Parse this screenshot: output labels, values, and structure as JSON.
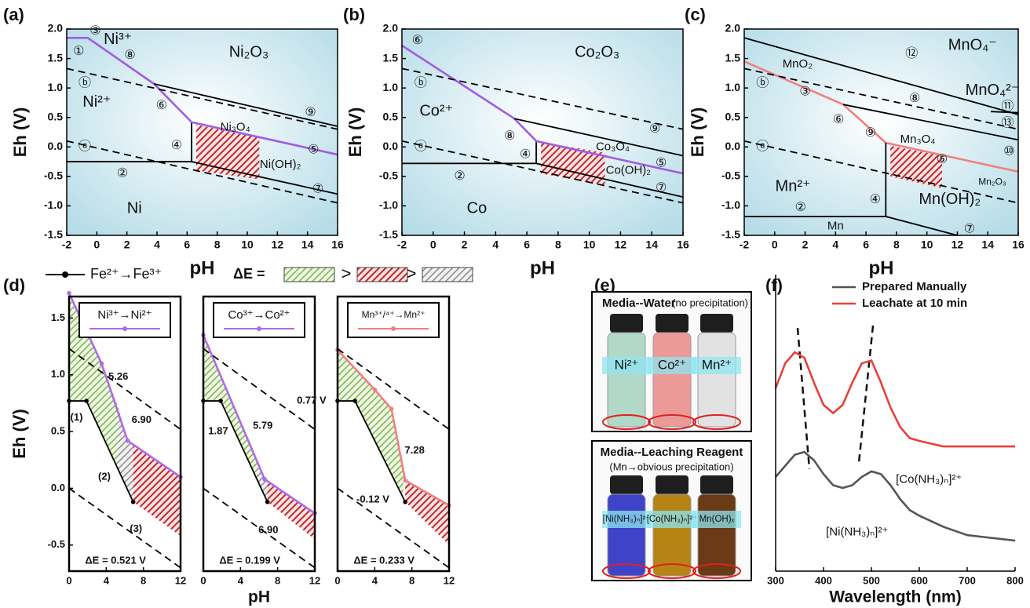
{
  "chart_data": [
    {
      "type": "line",
      "panel": "(a)",
      "xlabel": "pH",
      "ylabel": "Eh (V)",
      "xlim": [
        -2,
        16
      ],
      "xticks": [
        -2,
        0,
        2,
        4,
        6,
        8,
        10,
        12,
        14,
        16
      ],
      "ylim": [
        -1.5,
        2
      ],
      "yticks": [
        -1.5,
        {
          "value": -1,
          "label": "-1.0"
        },
        -0.5,
        {
          "value": 0,
          "label": "0.0"
        },
        0.5,
        {
          "value": 1,
          "label": "1.0"
        },
        1.5,
        {
          "value": 2,
          "label": "2.0"
        }
      ],
      "series": [
        {
          "color": "#000000",
          "x": [
            -2,
            6.3,
            16
          ],
          "values": [
            -0.25,
            -0.25,
            -0.8
          ]
        },
        {
          "color": "#000000",
          "x": [
            6.3,
            6.3
          ],
          "values": [
            -0.25,
            0.42
          ]
        },
        {
          "color": "#a05ce0",
          "x": [
            -2,
            -0.6,
            3.8,
            6.3,
            16
          ],
          "values": [
            1.85,
            1.85,
            1.07,
            0.42,
            -0.13
          ]
        },
        {
          "color": "#000000",
          "x": [
            3.8,
            16
          ],
          "values": [
            1.07,
            0.35
          ]
        },
        {
          "color": "#000000",
          "style": "dashed",
          "x": [
            -2,
            16
          ],
          "values": [
            1.33,
            0.3
          ]
        },
        {
          "color": "#000000",
          "style": "dashed",
          "x": [
            -2,
            16
          ],
          "values": [
            0.1,
            -0.95
          ]
        }
      ],
      "annotations": [
        "Ni³⁺",
        "Ni₂O₃",
        "Ni²⁺",
        "Ni₃O₄",
        "Ni(OH)₂",
        "Ni",
        "①",
        "③",
        "⑧",
        "ⓑ",
        "⑥",
        "④",
        "ⓐ",
        "②",
        "⑨",
        "⑤",
        "⑦"
      ]
    },
    {
      "type": "line",
      "panel": "(b)",
      "xlabel": "pH",
      "ylabel": "Eh (V)",
      "xlim": [
        -2,
        16
      ],
      "xticks": [
        -2,
        0,
        2,
        4,
        6,
        8,
        10,
        12,
        14,
        16
      ],
      "ylim": [
        -1.5,
        2
      ],
      "yticks": [
        -1.5,
        {
          "value": -1,
          "label": "-1.0"
        },
        -0.5,
        {
          "value": 0,
          "label": "0.0"
        },
        0.5,
        {
          "value": 1,
          "label": "1.0"
        },
        1.5,
        {
          "value": 2,
          "label": "2.0"
        }
      ],
      "series": [
        {
          "color": "#000000",
          "x": [
            -2,
            6.6,
            16
          ],
          "values": [
            -0.28,
            -0.28,
            -0.85
          ]
        },
        {
          "color": "#000000",
          "x": [
            6.6,
            6.6
          ],
          "values": [
            -0.28,
            0.1
          ]
        },
        {
          "color": "#a05ce0",
          "x": [
            -2,
            5.2,
            6.6,
            16
          ],
          "values": [
            1.72,
            0.48,
            0.1,
            -0.45
          ]
        },
        {
          "color": "#000000",
          "x": [
            5.2,
            16
          ],
          "values": [
            0.48,
            -0.15
          ]
        },
        {
          "color": "#000000",
          "style": "dashed",
          "x": [
            -2,
            16
          ],
          "values": [
            1.33,
            0.3
          ]
        },
        {
          "color": "#000000",
          "style": "dashed",
          "x": [
            -2,
            16
          ],
          "values": [
            0.1,
            -0.95
          ]
        }
      ],
      "annotations": [
        "Co₂O₃",
        "Co²⁺",
        "Co₃O₄",
        "Co(OH)₂",
        "Co",
        "⑥",
        "ⓑ",
        "⑧",
        "④",
        "ⓐ",
        "②",
        "⑨",
        "⑤",
        "⑦"
      ]
    },
    {
      "type": "line",
      "panel": "(c)",
      "xlabel": "pH",
      "ylabel": "Eh (V)",
      "xlim": [
        -2,
        16
      ],
      "xticks": [
        -2,
        0,
        2,
        4,
        6,
        8,
        10,
        12,
        14,
        16
      ],
      "ylim": [
        -1.5,
        2
      ],
      "yticks": [
        -1.5,
        {
          "value": -1,
          "label": "-1.0"
        },
        -0.5,
        {
          "value": 0,
          "label": "0.0"
        },
        0.5,
        {
          "value": 1,
          "label": "1.0"
        },
        1.5,
        {
          "value": 2,
          "label": "2.0"
        }
      ],
      "series": [
        {
          "color": "#000000",
          "x": [
            -2,
            16
          ],
          "values": [
            1.85,
            0.55
          ]
        },
        {
          "color": "#f08080",
          "x": [
            -2,
            4.5,
            7.3,
            16
          ],
          "values": [
            1.45,
            0.72,
            0.07,
            -0.42
          ]
        },
        {
          "color": "#000000",
          "x": [
            4.5,
            16
          ],
          "values": [
            0.72,
            0.12
          ]
        },
        {
          "color": "#000000",
          "x": [
            14.2,
            16
          ],
          "values": [
            0.6,
            0.58
          ]
        },
        {
          "color": "#000000",
          "x": [
            -2,
            7.3,
            12
          ],
          "values": [
            -1.18,
            -1.18,
            -1.5
          ]
        },
        {
          "color": "#000000",
          "x": [
            7.3,
            7.3
          ],
          "values": [
            -1.18,
            0.07
          ]
        },
        {
          "color": "#000000",
          "style": "dashed",
          "x": [
            -2,
            16
          ],
          "values": [
            1.33,
            0.3
          ]
        },
        {
          "color": "#000000",
          "style": "dashed",
          "x": [
            -2,
            16
          ],
          "values": [
            0.1,
            -0.95
          ]
        }
      ],
      "annotations": [
        "MnO₄⁻",
        "MnO₂",
        "MnO₄²⁻",
        "Mn²⁺",
        "Mn₃O₄",
        "Mn(OH)₂",
        "Mn₂O₃",
        "Mn",
        "⑫",
        "ⓑ",
        "③",
        "⑧",
        "⑪",
        "⑥",
        "⑬",
        "⑨",
        "ⓐ",
        "⑤",
        "⑩",
        "②",
        "④",
        "⑦"
      ]
    },
    {
      "type": "line",
      "panel": "(d)",
      "ylabel": "Eh (V)",
      "xlim": [
        0,
        12
      ],
      "xticks": [
        0,
        4,
        8,
        12
      ],
      "ylim": [
        -0.73,
        1.69
      ],
      "yticks": [
        -0.5,
        {
          "value": 0,
          "label": "0.0"
        },
        0.5,
        {
          "value": 1,
          "label": "1.0"
        },
        1.5
      ],
      "delta_legend": {
        "label": "ΔE =",
        "separators": [
          ">",
          ">"
        ]
      },
      "series": [
        {
          "name": "Fe²⁺→Fe³⁺",
          "color": "#000000",
          "markers": true,
          "x": [
            0,
            1.87,
            6.9
          ],
          "values": [
            0.77,
            0.77,
            -0.12
          ]
        },
        {
          "name": "Ni³⁺→Ni²⁺",
          "color": "#b06be8",
          "markers": true,
          "x": [
            0,
            3.5,
            6.3,
            12
          ],
          "values": [
            1.72,
            1.1,
            0.42,
            0.1
          ]
        },
        {
          "color": "#000000",
          "style": "dashed",
          "x": [
            0,
            12
          ],
          "values": [
            1.23,
            0.52
          ]
        },
        {
          "color": "#000000",
          "style": "dashed",
          "x": [
            0,
            12
          ],
          "values": [
            0,
            -0.7
          ]
        }
      ],
      "annotations": [
        "5.26",
        "6.90",
        "(1)",
        "(2)",
        "(3)",
        "ΔE = 0.521 V"
      ]
    },
    {
      "type": "line",
      "xlabel": "pH",
      "xlim": [
        0,
        12
      ],
      "xticks": [
        0,
        4,
        8,
        12
      ],
      "ylim": [
        -0.73,
        1.69
      ],
      "series": [
        {
          "color": "#000000",
          "markers": true,
          "x": [
            0,
            1.87,
            6.9
          ],
          "values": [
            0.77,
            0.77,
            -0.12
          ]
        },
        {
          "name": "Co³⁺→Co²⁺",
          "color": "#b06be8",
          "markers": true,
          "x": [
            0,
            6.6,
            12
          ],
          "values": [
            1.35,
            0.08,
            -0.22
          ]
        },
        {
          "color": "#000000",
          "style": "dashed",
          "x": [
            0,
            12
          ],
          "values": [
            1.23,
            0.52
          ]
        },
        {
          "color": "#000000",
          "style": "dashed",
          "x": [
            0,
            12
          ],
          "values": [
            0,
            -0.7
          ]
        }
      ],
      "annotations": [
        "1.87",
        "5.79",
        "6.90",
        "ΔE = 0.199 V"
      ]
    },
    {
      "type": "line",
      "xlim": [
        0,
        12
      ],
      "xticks": [
        0,
        4,
        8,
        12
      ],
      "ylim": [
        -0.73,
        1.69
      ],
      "series": [
        {
          "color": "#000000",
          "markers": true,
          "x": [
            0,
            1.87,
            7.28
          ],
          "values": [
            0.77,
            0.77,
            -0.12
          ]
        },
        {
          "name": "Mn³⁺/⁴⁺→Mn²⁺",
          "color": "#f08080",
          "markers": true,
          "x": [
            0,
            4,
            5.8,
            7.28,
            12
          ],
          "values": [
            1.22,
            0.87,
            0.7,
            0.07,
            -0.15
          ]
        },
        {
          "color": "#000000",
          "style": "dashed",
          "x": [
            0,
            12
          ],
          "values": [
            1.23,
            0.52
          ]
        },
        {
          "color": "#000000",
          "style": "dashed",
          "x": [
            0,
            12
          ],
          "values": [
            0,
            -0.7
          ]
        }
      ],
      "annotations": [
        "0.77 V",
        "7.28",
        "-0.12 V",
        "ΔE = 0.233 V"
      ]
    },
    {
      "type": "line",
      "panel": "(f)",
      "xlabel": "Wavelength (nm)",
      "xlim": [
        300,
        800
      ],
      "xticks": [
        300,
        400,
        500,
        600,
        700,
        800
      ],
      "ylim": [
        0,
        1.07
      ],
      "legend": "upper right",
      "x": [
        300,
        320,
        340,
        360,
        380,
        400,
        420,
        440,
        460,
        480,
        500,
        520,
        540,
        560,
        580,
        600,
        650,
        700,
        750,
        800
      ],
      "series": [
        {
          "name": "Prepared Manually",
          "color": "#555555",
          "values": [
            0.34,
            0.38,
            0.42,
            0.43,
            0.4,
            0.35,
            0.31,
            0.3,
            0.31,
            0.34,
            0.36,
            0.35,
            0.31,
            0.26,
            0.22,
            0.2,
            0.16,
            0.13,
            0.12,
            0.11
          ]
        },
        {
          "name": "Leachate at 10 min",
          "color": "#e8403a",
          "values": [
            0.66,
            0.75,
            0.79,
            0.77,
            0.68,
            0.6,
            0.57,
            0.6,
            0.68,
            0.75,
            0.76,
            0.68,
            0.59,
            0.52,
            0.48,
            0.47,
            0.45,
            0.45,
            0.45,
            0.45
          ]
        }
      ],
      "annotations": [
        "[Co(NH₃)ₙ]²⁺",
        "[Ni(NH₃)ₙ]²⁺"
      ]
    }
  ],
  "photo_panel": {
    "label": "(e)",
    "top": {
      "title": "Media--Water",
      "note": "(no precipitation)",
      "vials": [
        "Ni²⁺",
        "Co²⁺",
        "Mn²⁺"
      ]
    },
    "bottom": {
      "title": "Media--Leaching Reagent",
      "note": "(Mn→obvious precipitation)",
      "vials": [
        "[Ni(NH₃)ₙ]²⁺",
        "[Co(NH₃)ₙ]²⁺",
        "Mn(OH)ₓ"
      ]
    }
  }
}
